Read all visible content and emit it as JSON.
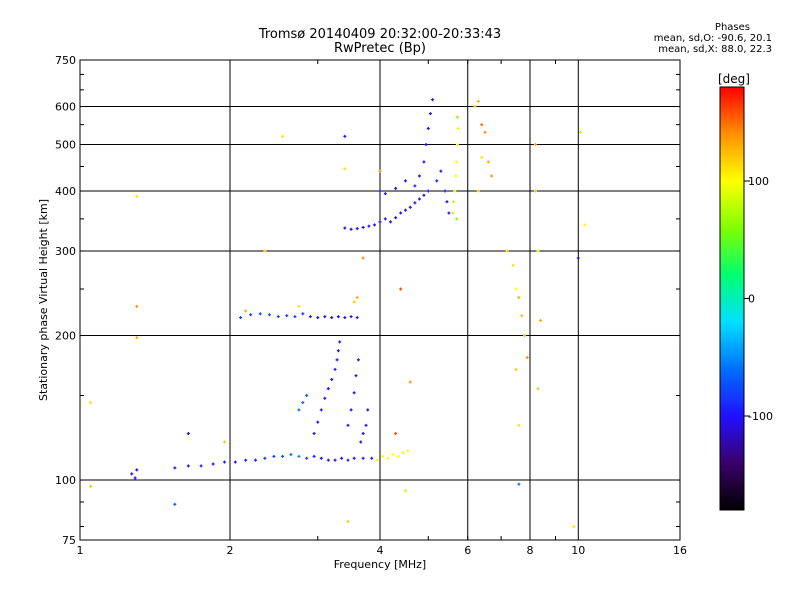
{
  "header": {
    "title": "Tromsø 20140409 20:32:00-20:33:43",
    "subtitle": "RwPretec (Bp)"
  },
  "phases_box": {
    "title": "Phases",
    "line1": "mean, sd,O: -90.6, 20.1",
    "line2": "mean, sd,X:  88.0, 22.3"
  },
  "colorbar": {
    "label": "[deg]",
    "range": [
      -180,
      180
    ],
    "ticks": [
      100,
      0,
      -100
    ],
    "tick_labels": [
      "100",
      "0",
      "-100"
    ],
    "colors": [
      "#000000",
      "#3b006b",
      "#2010ff",
      "#0070ff",
      "#00e0ff",
      "#00ff70",
      "#80ff00",
      "#ffff00",
      "#ff9000",
      "#ff0000"
    ]
  },
  "chart_data": {
    "type": "scatter",
    "xlabel": "Frequency [MHz]",
    "ylabel": "Stationary phase Virtual Height [km]",
    "x_scale": "log",
    "y_scale": "log",
    "xlim": [
      1,
      16
    ],
    "ylim": [
      75,
      750
    ],
    "x_ticks": [
      1,
      2,
      4,
      6,
      8,
      10,
      16
    ],
    "x_tick_labels": [
      "1",
      "2",
      "4",
      "6",
      "8",
      "10",
      "16"
    ],
    "y_ticks": [
      75,
      100,
      200,
      300,
      400,
      500,
      600,
      750
    ],
    "y_tick_labels": [
      "75",
      "100",
      "200",
      "300",
      "400",
      "500",
      "600",
      "750"
    ],
    "grid": true,
    "points": [
      [
        1.27,
        103,
        -110
      ],
      [
        1.3,
        105,
        -115
      ],
      [
        1.29,
        101,
        -105
      ],
      [
        1.55,
        106,
        -100
      ],
      [
        1.65,
        107,
        -105
      ],
      [
        1.75,
        107,
        -95
      ],
      [
        1.85,
        108,
        -100
      ],
      [
        1.95,
        109,
        -95
      ],
      [
        2.05,
        109,
        -100
      ],
      [
        2.15,
        110,
        -90
      ],
      [
        2.25,
        110,
        -95
      ],
      [
        2.35,
        111,
        -85
      ],
      [
        2.45,
        112,
        -80
      ],
      [
        2.55,
        112,
        -70
      ],
      [
        2.65,
        113,
        -60
      ],
      [
        2.75,
        112,
        -50
      ],
      [
        2.85,
        111,
        -80
      ],
      [
        2.95,
        112,
        -95
      ],
      [
        3.05,
        111,
        -100
      ],
      [
        3.15,
        110,
        -105
      ],
      [
        3.25,
        110,
        -110
      ],
      [
        3.35,
        111,
        -100
      ],
      [
        3.45,
        110,
        -95
      ],
      [
        3.55,
        111,
        -100
      ],
      [
        3.7,
        111,
        -100
      ],
      [
        3.85,
        111,
        -95
      ],
      [
        3.95,
        110,
        90
      ],
      [
        4.05,
        112,
        95
      ],
      [
        4.15,
        111,
        100
      ],
      [
        4.25,
        113,
        100
      ],
      [
        4.35,
        112,
        98
      ],
      [
        4.45,
        114,
        95
      ],
      [
        4.55,
        115,
        100
      ],
      [
        2.75,
        140,
        -60
      ],
      [
        2.8,
        145,
        -65
      ],
      [
        2.85,
        150,
        -70
      ],
      [
        2.95,
        125,
        -100
      ],
      [
        3.0,
        132,
        -100
      ],
      [
        3.05,
        140,
        -95
      ],
      [
        3.1,
        148,
        -100
      ],
      [
        3.15,
        155,
        -100
      ],
      [
        3.2,
        162,
        -100
      ],
      [
        3.25,
        170,
        -95
      ],
      [
        3.28,
        178,
        -100
      ],
      [
        3.3,
        186,
        -100
      ],
      [
        3.32,
        194,
        -95
      ],
      [
        3.45,
        130,
        -110
      ],
      [
        3.5,
        140,
        -105
      ],
      [
        3.55,
        152,
        -100
      ],
      [
        3.58,
        165,
        -100
      ],
      [
        3.62,
        178,
        -105
      ],
      [
        3.66,
        120,
        -110
      ],
      [
        3.7,
        125,
        -100
      ],
      [
        3.75,
        130,
        -105
      ],
      [
        3.78,
        140,
        -100
      ],
      [
        2.1,
        218,
        -80
      ],
      [
        2.2,
        221,
        -80
      ],
      [
        2.3,
        222,
        -75
      ],
      [
        2.4,
        221,
        -70
      ],
      [
        2.5,
        219,
        -75
      ],
      [
        2.6,
        220,
        -80
      ],
      [
        2.7,
        219,
        -80
      ],
      [
        2.8,
        222,
        -85
      ],
      [
        2.9,
        219,
        -95
      ],
      [
        3.0,
        218,
        -100
      ],
      [
        3.1,
        219,
        -100
      ],
      [
        3.2,
        218,
        -100
      ],
      [
        3.3,
        219,
        -105
      ],
      [
        3.4,
        218,
        -100
      ],
      [
        3.5,
        219,
        -100
      ],
      [
        3.6,
        218,
        -95
      ],
      [
        3.4,
        335,
        -110
      ],
      [
        3.5,
        333,
        -105
      ],
      [
        3.6,
        334,
        -100
      ],
      [
        3.7,
        336,
        -110
      ],
      [
        3.8,
        338,
        -100
      ],
      [
        3.9,
        340,
        -105
      ],
      [
        4.0,
        345,
        -100
      ],
      [
        4.1,
        350,
        -110
      ],
      [
        4.2,
        345,
        -100
      ],
      [
        4.3,
        352,
        -105
      ],
      [
        4.4,
        360,
        -100
      ],
      [
        4.5,
        365,
        -100
      ],
      [
        4.6,
        370,
        -105
      ],
      [
        4.7,
        378,
        -100
      ],
      [
        4.8,
        385,
        -100
      ],
      [
        4.9,
        392,
        -105
      ],
      [
        5.0,
        400,
        -100
      ],
      [
        4.0,
        400,
        -100
      ],
      [
        4.1,
        395,
        -105
      ],
      [
        4.3,
        405,
        -100
      ],
      [
        4.5,
        420,
        -100
      ],
      [
        4.7,
        410,
        -95
      ],
      [
        4.8,
        430,
        -100
      ],
      [
        4.9,
        460,
        -100
      ],
      [
        4.95,
        500,
        -105
      ],
      [
        5.0,
        540,
        -100
      ],
      [
        5.05,
        580,
        -100
      ],
      [
        5.1,
        620,
        -100
      ],
      [
        5.2,
        420,
        -95
      ],
      [
        5.3,
        440,
        -100
      ],
      [
        5.4,
        400,
        -100
      ],
      [
        5.45,
        380,
        -105
      ],
      [
        5.5,
        360,
        -100
      ],
      [
        5.6,
        360,
        80
      ],
      [
        5.62,
        380,
        75
      ],
      [
        5.65,
        400,
        90
      ],
      [
        5.68,
        430,
        95
      ],
      [
        5.7,
        460,
        98
      ],
      [
        5.72,
        500,
        100
      ],
      [
        5.74,
        540,
        105
      ],
      [
        5.72,
        570,
        60
      ],
      [
        5.7,
        350,
        60
      ],
      [
        6.2,
        600,
        120
      ],
      [
        6.3,
        615,
        130
      ],
      [
        6.4,
        550,
        150
      ],
      [
        6.5,
        530,
        140
      ],
      [
        6.6,
        460,
        130
      ],
      [
        6.7,
        430,
        140
      ],
      [
        6.4,
        470,
        110
      ],
      [
        6.3,
        400,
        120
      ],
      [
        7.2,
        300,
        120
      ],
      [
        7.4,
        280,
        110
      ],
      [
        7.5,
        250,
        100
      ],
      [
        7.6,
        240,
        130
      ],
      [
        7.7,
        220,
        125
      ],
      [
        7.8,
        200,
        130
      ],
      [
        7.9,
        180,
        140
      ],
      [
        7.5,
        170,
        120
      ],
      [
        7.6,
        130,
        110
      ],
      [
        7.6,
        98,
        -60
      ],
      [
        8.2,
        500,
        130
      ],
      [
        8.2,
        400,
        120
      ],
      [
        8.3,
        300,
        90
      ],
      [
        8.4,
        215,
        130
      ],
      [
        8.3,
        155,
        120
      ],
      [
        9.8,
        80,
        110
      ],
      [
        10.0,
        290,
        -100
      ],
      [
        10.1,
        530,
        80
      ],
      [
        10.3,
        340,
        100
      ],
      [
        1.05,
        145,
        110
      ],
      [
        1.05,
        97,
        120
      ],
      [
        1.3,
        390,
        110
      ],
      [
        1.3,
        230,
        140
      ],
      [
        1.3,
        198,
        130
      ],
      [
        1.55,
        89,
        -70
      ],
      [
        1.65,
        125,
        -100
      ],
      [
        1.95,
        120,
        120
      ],
      [
        2.15,
        225,
        130
      ],
      [
        2.35,
        300,
        120
      ],
      [
        2.55,
        520,
        110
      ],
      [
        2.75,
        230,
        110
      ],
      [
        3.4,
        520,
        -100
      ],
      [
        3.4,
        445,
        110
      ],
      [
        3.55,
        235,
        120
      ],
      [
        3.6,
        240,
        130
      ],
      [
        3.7,
        290,
        140
      ],
      [
        3.45,
        82,
        120
      ],
      [
        4.0,
        440,
        140
      ],
      [
        4.4,
        250,
        160
      ],
      [
        4.5,
        95,
        80
      ],
      [
        4.3,
        125,
        160
      ],
      [
        4.6,
        160,
        140
      ]
    ]
  }
}
